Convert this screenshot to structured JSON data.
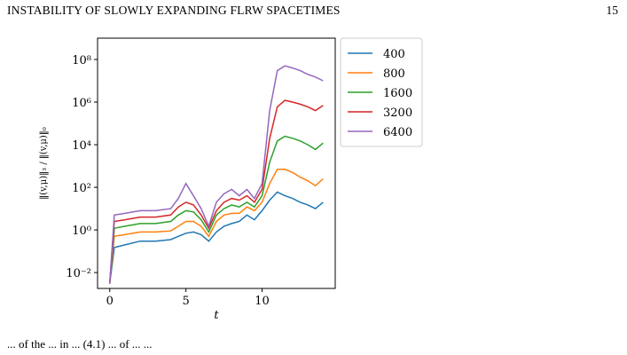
{
  "header": {
    "running_title": "INSTABILITY OF SLOWLY EXPANDING FLRW SPACETIMES",
    "page_number": "15"
  },
  "chart_data": {
    "type": "line",
    "title": "",
    "xlabel": "t",
    "ylabel": "‖(v,μ)‖₃ / ‖(v,μ)‖₀",
    "y_scale": "log",
    "xlim": [
      -0.8,
      14.8
    ],
    "ylim": [
      0.0018,
      1000000000.0
    ],
    "x_ticks": [
      0,
      5,
      10
    ],
    "x_tick_labels": [
      "0",
      "5",
      "10"
    ],
    "y_ticks": [
      0.01,
      1,
      100,
      10000,
      1000000,
      100000000
    ],
    "y_tick_labels": [
      "10⁻²",
      "10⁰",
      "10²",
      "10⁴",
      "10⁶",
      "10⁸"
    ],
    "grid": false,
    "legend_position": "outside-top-right",
    "series": [
      {
        "name": "400",
        "color": "#1f77b4",
        "x": [
          0,
          0.3,
          1,
          2,
          3,
          4,
          4.5,
          5,
          5.5,
          6,
          6.5,
          7,
          7.5,
          8,
          8.5,
          9,
          9.5,
          10,
          10.5,
          11,
          11.5,
          12,
          12.5,
          13,
          13.5,
          14
        ],
        "y": [
          0.003,
          0.15,
          0.2,
          0.3,
          0.3,
          0.35,
          0.5,
          0.7,
          0.8,
          0.6,
          0.3,
          0.8,
          1.5,
          2,
          2.5,
          5,
          3,
          8,
          25,
          60,
          40,
          30,
          20,
          15,
          10,
          20
        ]
      },
      {
        "name": "800",
        "color": "#ff7f0e",
        "x": [
          0,
          0.3,
          1,
          2,
          3,
          4,
          4.5,
          5,
          5.5,
          6,
          6.5,
          7,
          7.5,
          8,
          8.5,
          9,
          9.5,
          10,
          10.5,
          11,
          11.5,
          12,
          12.5,
          13,
          13.5,
          14
        ],
        "y": [
          0.003,
          0.5,
          0.6,
          0.8,
          0.8,
          0.9,
          1.5,
          2.5,
          2.5,
          1.5,
          0.5,
          2.5,
          5,
          6,
          6,
          12,
          8,
          20,
          150,
          700,
          700,
          500,
          300,
          200,
          120,
          250
        ]
      },
      {
        "name": "1600",
        "color": "#2ca02c",
        "x": [
          0,
          0.3,
          1,
          2,
          3,
          4,
          4.5,
          5,
          5.5,
          6,
          6.5,
          7,
          7.5,
          8,
          8.5,
          9,
          9.5,
          10,
          10.5,
          11,
          11.5,
          12,
          12.5,
          13,
          13.5,
          14
        ],
        "y": [
          0.003,
          1.2,
          1.5,
          2,
          2,
          2.5,
          5,
          8,
          7,
          3,
          0.8,
          5,
          10,
          15,
          12,
          20,
          12,
          40,
          1500,
          15000,
          25000,
          20000,
          15000,
          10000,
          6000,
          12000
        ]
      },
      {
        "name": "3200",
        "color": "#d62728",
        "x": [
          0,
          0.3,
          1,
          2,
          3,
          4,
          4.5,
          5,
          5.5,
          6,
          6.5,
          7,
          7.5,
          8,
          8.5,
          9,
          9.5,
          10,
          10.5,
          11,
          11.5,
          12,
          12.5,
          13,
          13.5,
          14
        ],
        "y": [
          0.003,
          2.5,
          3,
          4,
          4,
          5,
          12,
          20,
          15,
          5,
          1.2,
          8,
          20,
          30,
          25,
          40,
          20,
          80,
          20000,
          600000,
          1200000,
          1000000,
          800000,
          600000,
          400000,
          700000
        ]
      },
      {
        "name": "6400",
        "color": "#9467bd",
        "x": [
          0,
          0.3,
          1,
          2,
          3,
          4,
          4.5,
          5,
          5.5,
          6,
          6.5,
          7,
          7.5,
          8,
          8.5,
          9,
          9.5,
          10,
          10.5,
          11,
          11.5,
          12,
          12.5,
          13,
          13.5,
          14
        ],
        "y": [
          0.003,
          5,
          6,
          8,
          8,
          10,
          30,
          150,
          40,
          10,
          1.5,
          20,
          50,
          80,
          40,
          80,
          30,
          150,
          400000,
          30000000,
          50000000,
          40000000,
          30000000,
          20000000,
          15000000,
          10000000
        ]
      }
    ]
  },
  "bottom_line": "... of the ... in ... (4.1) ... of ... ..."
}
